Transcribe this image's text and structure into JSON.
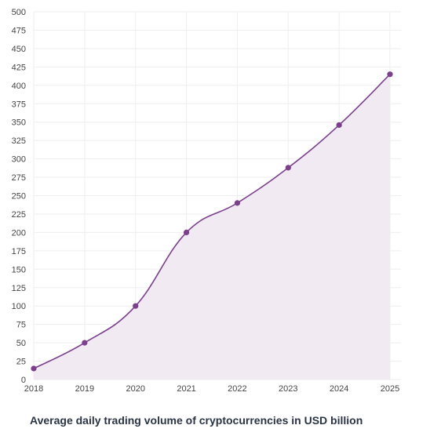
{
  "chart_data": {
    "type": "area",
    "title": "Average daily trading volume of cryptocurrencies in USD billion",
    "xlabel": "",
    "ylabel": "",
    "x": [
      "2018",
      "2019",
      "2020",
      "2021",
      "2022",
      "2023",
      "2024",
      "2025"
    ],
    "series": [
      {
        "values": [
          15,
          50,
          100,
          200,
          240,
          288,
          346,
          415
        ]
      }
    ],
    "ylim": [
      0,
      500
    ],
    "ytick_step": 25,
    "grid": true,
    "legend": "none",
    "colors": {
      "line": "#7b3f8c",
      "fill": "#f1eaf3",
      "grid": "#eeeeee",
      "marker": "#7b3f8c"
    }
  }
}
